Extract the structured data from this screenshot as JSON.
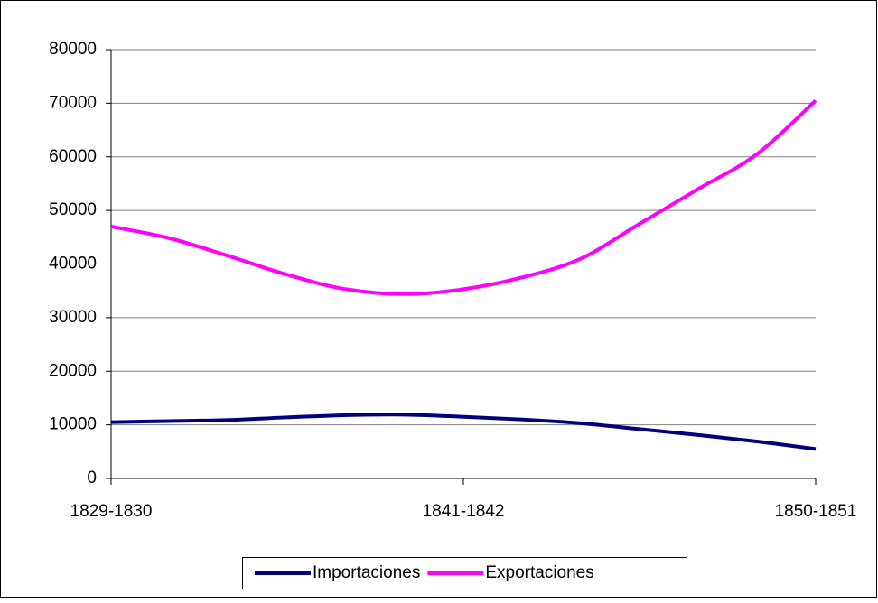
{
  "chart_data": {
    "type": "line",
    "categories": [
      "1829-1830",
      null,
      null,
      null,
      null,
      null,
      "1841-1842",
      null,
      null,
      null,
      null,
      null,
      "1850-1851"
    ],
    "series": [
      {
        "name": "Importaciones",
        "color": "#000080",
        "values": [
          10500,
          10700,
          10900,
          11400,
          11800,
          11900,
          11500,
          11000,
          10300,
          9200,
          8100,
          6900,
          5500
        ]
      },
      {
        "name": "Exportaciones",
        "color": "#ff00ff",
        "values": [
          47000,
          44800,
          41500,
          38000,
          35300,
          34400,
          35300,
          37500,
          41000,
          47500,
          54000,
          60500,
          70500
        ]
      }
    ],
    "ylim": [
      0,
      80000
    ],
    "yticks": [
      0,
      10000,
      20000,
      30000,
      40000,
      50000,
      60000,
      70000,
      80000
    ],
    "grid": true,
    "legend": "bottom",
    "smooth": true
  }
}
